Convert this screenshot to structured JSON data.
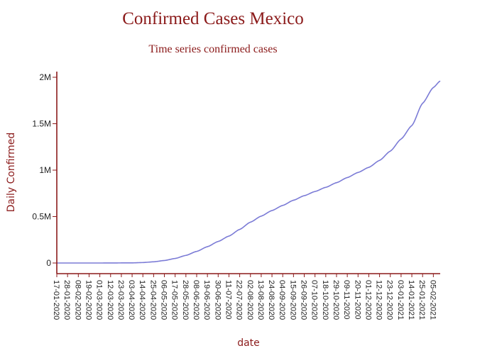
{
  "colors": {
    "title": "#8b1a1a",
    "axis": "#8b1a1a",
    "series": "#7b7bd6",
    "tick_text": "#222222"
  },
  "chart_data": {
    "type": "line",
    "title": "Confirmed Cases Mexico",
    "subtitle": "Time series confirmed cases",
    "xlabel": "date",
    "ylabel": "Daily Confirmed",
    "grid": false,
    "legend": "none",
    "ylim": [
      0,
      2000000
    ],
    "xlim": [
      "2020-01-17",
      "2021-02-12"
    ],
    "y_ticks": [
      {
        "value": 0,
        "label": "0"
      },
      {
        "value": 500000,
        "label": "0.5M"
      },
      {
        "value": 1000000,
        "label": "1M"
      },
      {
        "value": 1500000,
        "label": "1.5M"
      },
      {
        "value": 2000000,
        "label": "2M"
      }
    ],
    "x_ticks": [
      "17-01-2020",
      "28-01-2020",
      "08-02-2020",
      "19-02-2020",
      "01-03-2020",
      "12-03-2020",
      "23-03-2020",
      "03-04-2020",
      "14-04-2020",
      "25-04-2020",
      "06-05-2020",
      "17-05-2020",
      "28-05-2020",
      "08-06-2020",
      "19-06-2020",
      "30-06-2020",
      "11-07-2020",
      "22-07-2020",
      "02-08-2020",
      "13-08-2020",
      "24-08-2020",
      "04-09-2020",
      "15-09-2020",
      "26-09-2020",
      "07-10-2020",
      "18-10-2020",
      "29-10-2020",
      "09-11-2020",
      "20-11-2020",
      "01-12-2020",
      "12-12-2020",
      "23-12-2020",
      "03-01-2021",
      "14-01-2021",
      "25-01-2021",
      "05-02-2021"
    ],
    "series": [
      {
        "x": [
          "2020-01-17",
          "2020-03-01",
          "2020-04-03",
          "2020-04-14",
          "2020-04-25",
          "2020-05-06",
          "2020-05-17",
          "2020-05-28",
          "2020-06-08",
          "2020-06-19",
          "2020-06-30",
          "2020-07-11",
          "2020-07-22",
          "2020-08-02",
          "2020-08-13",
          "2020-08-24",
          "2020-09-04",
          "2020-09-15",
          "2020-09-26",
          "2020-10-07",
          "2020-10-18",
          "2020-10-29",
          "2020-11-09",
          "2020-11-20",
          "2020-12-01",
          "2020-12-12",
          "2020-12-23",
          "2021-01-03",
          "2021-01-14",
          "2021-01-25",
          "2021-02-05",
          "2021-02-12"
        ],
        "values": [
          0,
          0,
          1500,
          5000,
          13000,
          27000,
          49000,
          82000,
          125000,
          176000,
          232000,
          290000,
          362000,
          440000,
          505000,
          565000,
          620000,
          676000,
          725000,
          770000,
          815000,
          865000,
          920000,
          975000,
          1030000,
          1105000,
          1205000,
          1335000,
          1480000,
          1720000,
          1890000,
          1960000
        ]
      }
    ]
  }
}
